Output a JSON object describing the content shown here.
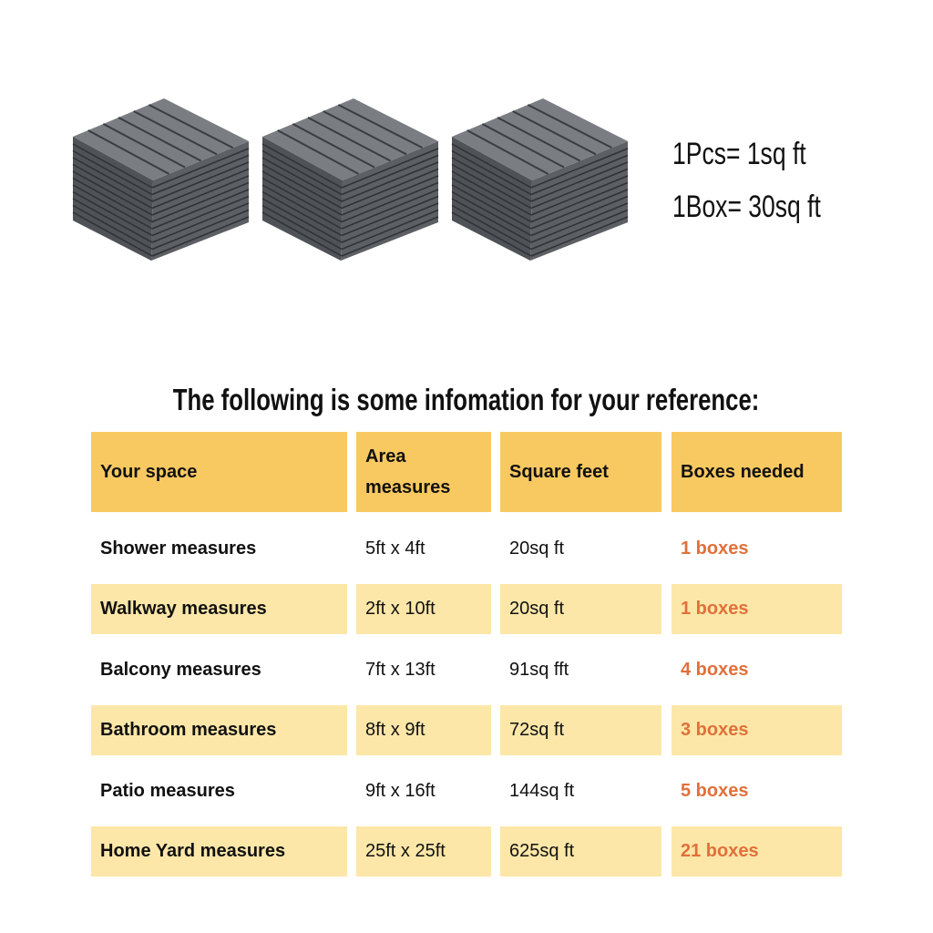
{
  "product": {
    "image": "stacked-deck-tiles",
    "count_shown": 3,
    "tile_color": "#6b6e73"
  },
  "specs": [
    "1Pcs= 1sq ft",
    "1Box= 30sq ft"
  ],
  "title": "The following is some infomation for your reference:",
  "colors": {
    "header": "#f9c961",
    "alt_row": "#fde7a8",
    "boxes_text": "#e0703a"
  },
  "table": {
    "headers": [
      "Your space",
      "Area measures",
      "Square feet",
      "Boxes needed"
    ],
    "rows": [
      [
        "Shower measures",
        "5ft x 4ft",
        "20sq ft",
        "1 boxes"
      ],
      [
        "Walkway measures",
        "2ft x 10ft",
        "20sq ft",
        "1 boxes"
      ],
      [
        "Balcony measures",
        "7ft x 13ft",
        "91sq fft",
        "4 boxes"
      ],
      [
        "Bathroom measures",
        "8ft x 9ft",
        "72sq ft",
        "3 boxes"
      ],
      [
        "Patio measures",
        "9ft x 16ft",
        "144sq ft",
        "5 boxes"
      ],
      [
        "Home Yard measures",
        "25ft x 25ft",
        "625sq ft",
        "21 boxes"
      ]
    ]
  }
}
